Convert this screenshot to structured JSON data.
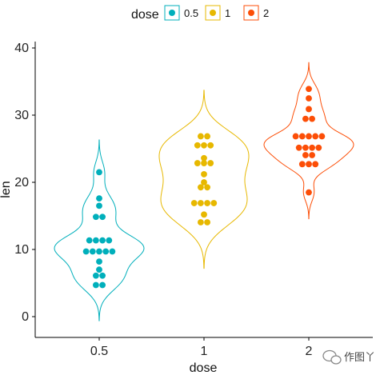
{
  "chart_data": {
    "type": "violin-dotplot",
    "title": "",
    "xlabel": "dose",
    "ylabel": "len",
    "categories": [
      "0.5",
      "1",
      "2"
    ],
    "ylim": [
      -3,
      40.5
    ],
    "yticks": [
      0,
      10,
      20,
      30,
      40
    ],
    "legend": {
      "title": "dose",
      "position": "top",
      "labels": [
        "0.5",
        "1",
        "2"
      ]
    },
    "grid": false,
    "series": [
      {
        "name": "0.5",
        "color": "#00AFBB",
        "values": [
          4.2,
          5.2,
          5.8,
          6.4,
          7.0,
          8.2,
          9.4,
          9.7,
          9.7,
          10.0,
          10.0,
          11.2,
          11.2,
          11.5,
          11.5,
          14.5,
          15.2,
          16.5,
          17.6,
          21.5
        ]
      },
      {
        "name": "1",
        "color": "#E7B800",
        "values": [
          13.6,
          14.5,
          15.2,
          16.5,
          16.5,
          17.3,
          17.3,
          18.8,
          19.7,
          20.0,
          21.2,
          22.4,
          23.0,
          23.3,
          23.6,
          25.2,
          25.8,
          25.8,
          26.4,
          27.3
        ]
      },
      {
        "name": "2",
        "color": "#FC4E07",
        "values": [
          18.5,
          22.4,
          23.0,
          23.6,
          24.5,
          24.8,
          25.5,
          26.4,
          26.4,
          26.7,
          27.3,
          29.4,
          29.5,
          30.9,
          32.5,
          33.9,
          26.4,
          25.5,
          24.8,
          22.4
        ]
      }
    ]
  },
  "watermark": {
    "text": "作图丫",
    "icon": "wechat-icon"
  }
}
